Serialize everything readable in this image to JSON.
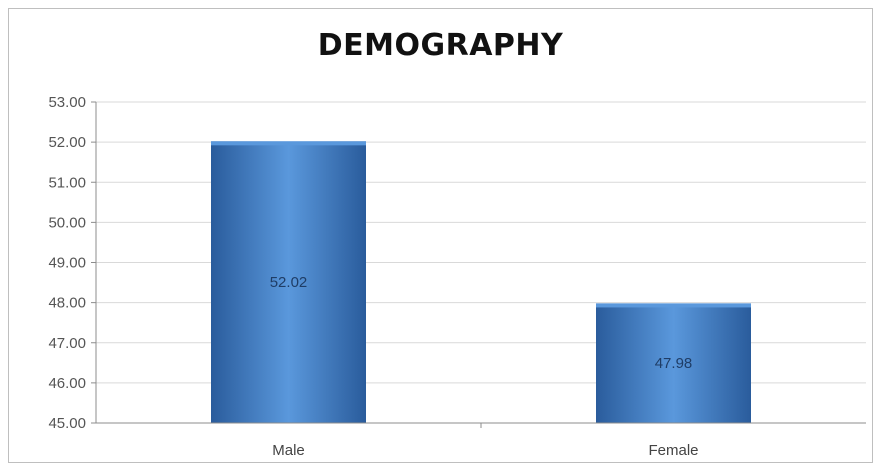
{
  "chart_data": {
    "type": "bar",
    "title": "DEMOGRAPHY",
    "categories": [
      "Male",
      "Female"
    ],
    "series": [
      {
        "values": [
          52.02,
          47.98
        ],
        "data_labels": [
          "52.02",
          "47.98"
        ]
      }
    ],
    "xlabel": "",
    "ylabel": "",
    "ylim": [
      45,
      53
    ],
    "yticks": [
      "45.00",
      "46.00",
      "47.00",
      "48.00",
      "49.00",
      "50.00",
      "51.00",
      "52.00",
      "53.00"
    ],
    "grid": true,
    "legend": "none",
    "colors": {
      "bar": "#3a78c2",
      "bar_dark": "#2a5c9c",
      "bar_light": "#5a98dc",
      "grid": "#d9d9d9"
    }
  }
}
